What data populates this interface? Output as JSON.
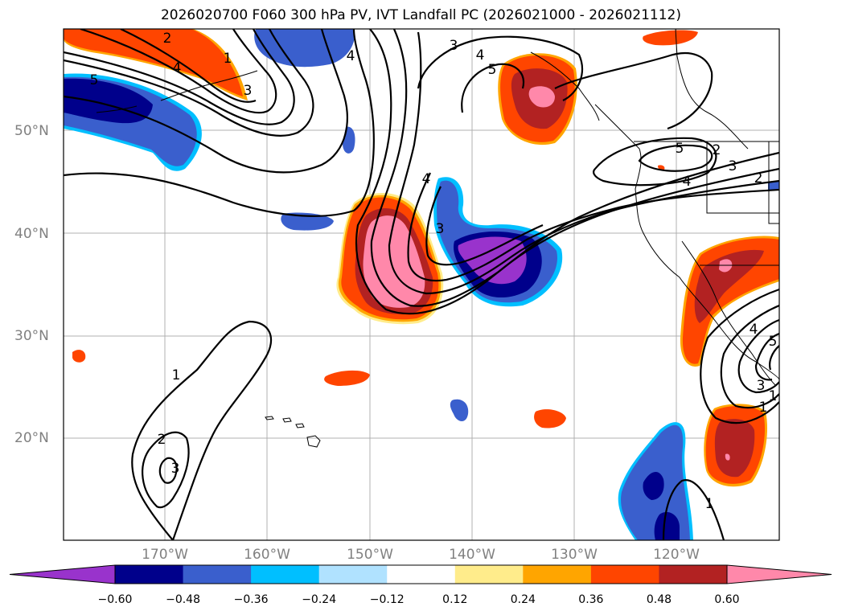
{
  "title": "2026020700 F060 300 hPa PV, IVT Landfall PC (2026021000 - 2026021112)",
  "lat_labels": [
    "50°N",
    "40°N",
    "30°N",
    "20°N"
  ],
  "lon_labels": [
    "170°W",
    "160°W",
    "150°W",
    "140°W",
    "130°W",
    "120°W"
  ],
  "colorbar": {
    "colors": [
      "#9933cc",
      "#00008b",
      "#3a5fcd",
      "#00bfff",
      "#b0e2ff",
      "#ffffff",
      "#ffec8b",
      "#ffa500",
      "#ff4500",
      "#b22222",
      "#ff88aa"
    ],
    "ticks": [
      "−0.60",
      "−0.48",
      "−0.36",
      "−0.24",
      "−0.12",
      "0.12",
      "0.24",
      "0.36",
      "0.48",
      "0.60"
    ]
  },
  "contour_labels": [
    "2",
    "4",
    "1",
    "5",
    "3",
    "3",
    "4",
    "5",
    "4",
    "5",
    "4",
    "2",
    "4",
    "3",
    "1",
    "2",
    "3",
    "4",
    "5",
    "3",
    "1",
    "1",
    "2",
    "3",
    "1"
  ]
}
